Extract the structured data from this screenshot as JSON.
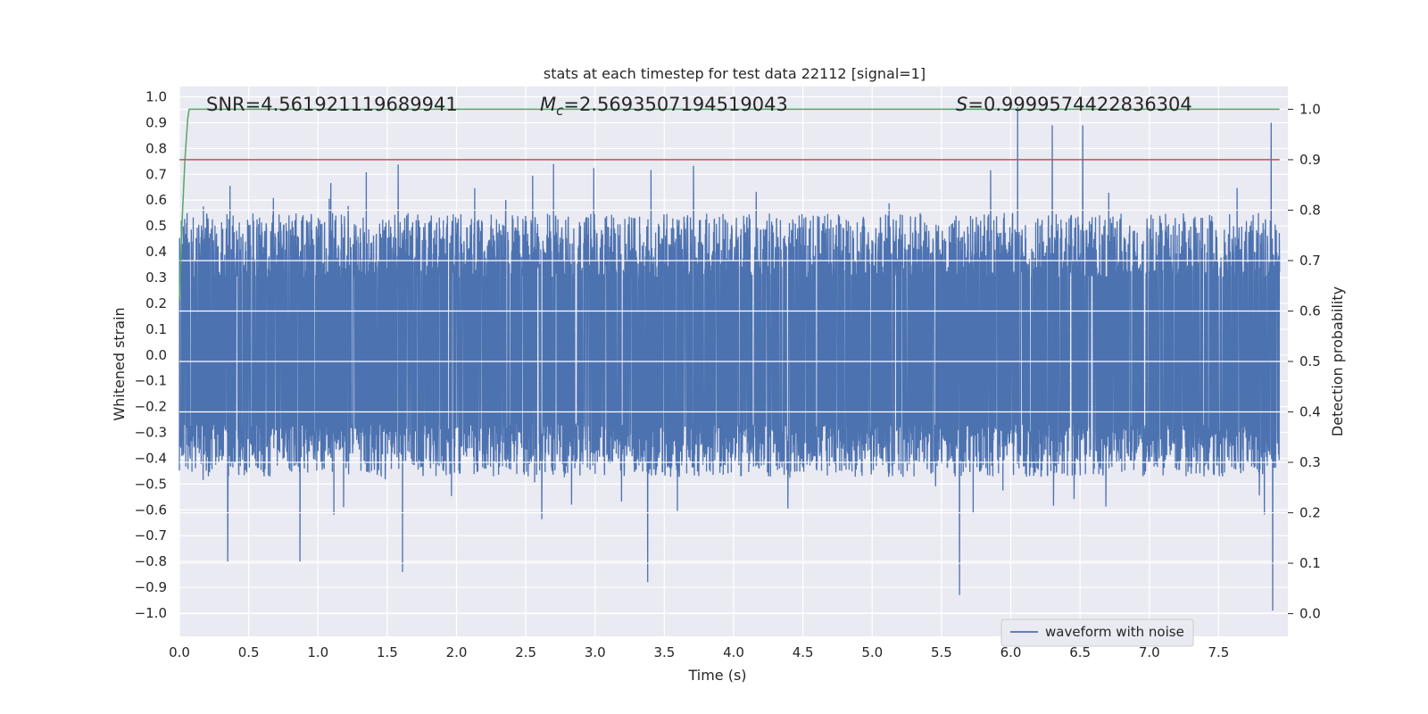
{
  "chart_data": {
    "type": "line",
    "title": "stats at each timestep for test data 22112 [signal=1]",
    "xlabel": "Time (s)",
    "ylabel": "Whitened strain",
    "y2label": "Detection probability",
    "xlim": [
      0.0,
      8.0
    ],
    "ylim": [
      -1.09,
      1.04
    ],
    "y2lim": [
      -0.045,
      1.045
    ],
    "xticks": [
      "0.0",
      "0.5",
      "1.0",
      "1.5",
      "2.0",
      "2.5",
      "3.0",
      "3.5",
      "4.0",
      "4.5",
      "5.0",
      "5.5",
      "6.0",
      "6.5",
      "7.0",
      "7.5"
    ],
    "yticks": [
      "1.0",
      "0.9",
      "0.8",
      "0.7",
      "0.6",
      "0.5",
      "0.4",
      "0.3",
      "0.2",
      "0.1",
      "0.0",
      "-0.1",
      "-0.2",
      "-0.3",
      "-0.4",
      "-0.5",
      "-0.6",
      "-0.7",
      "-0.8",
      "-0.9",
      "-1.0"
    ],
    "y2ticks": [
      "1.0",
      "0.9",
      "0.8",
      "0.7",
      "0.6",
      "0.5",
      "0.4",
      "0.3",
      "0.2",
      "0.1",
      "0.0"
    ],
    "grid": true,
    "legend_position": "lower-right",
    "annotations": [
      {
        "label": "SNR",
        "value": "4.561921119689941"
      },
      {
        "label": "M",
        "subscript": "c",
        "value": "2.5693507194519043"
      },
      {
        "label": "S",
        "value": "0.9999574422836304"
      }
    ],
    "series": [
      {
        "name": "waveform with noise",
        "axis": "left",
        "color": "#4c72b0",
        "description_range": [
          -1.0,
          0.96
        ],
        "typical_envelope": [
          -0.45,
          0.55
        ],
        "peaks": [
          {
            "x": 6.05,
            "y": 0.96
          },
          {
            "x": 6.3,
            "y": 0.89
          },
          {
            "x": 6.52,
            "y": 0.89
          },
          {
            "x": 7.88,
            "y": 0.9
          },
          {
            "x": 2.7,
            "y": 0.74
          },
          {
            "x": 7.89,
            "y": -0.99
          },
          {
            "x": 5.63,
            "y": -0.93
          },
          {
            "x": 3.38,
            "y": -0.88
          },
          {
            "x": 1.61,
            "y": -0.84
          },
          {
            "x": 0.35,
            "y": -0.8
          },
          {
            "x": 0.87,
            "y": -0.8
          }
        ]
      },
      {
        "axis": "right",
        "color": "#55a868",
        "x": [
          0.0,
          0.02,
          0.04,
          0.06,
          0.07,
          7.94
        ],
        "y": [
          0.62,
          0.78,
          0.9,
          0.98,
          1.0,
          1.0
        ]
      },
      {
        "axis": "right",
        "color": "#c44e52",
        "x": [
          0.0,
          7.94
        ],
        "y": [
          0.9,
          0.9
        ]
      }
    ],
    "x_end": 7.94
  }
}
